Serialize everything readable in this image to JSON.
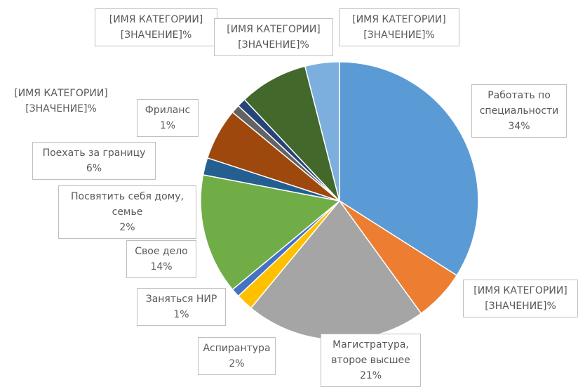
{
  "chart_data": {
    "type": "pie",
    "categories": [
      "Работать по специальности",
      "[ИМЯ КАТЕГОРИИ]",
      "Магистратура, второе высшее",
      "Аспирантура",
      "Заняться НИР",
      "Свое дело",
      "Посвятить себя дому, семье",
      "Поехать за границу",
      "Фриланс",
      "[ИМЯ КАТЕГОРИИ]",
      "[ИМЯ КАТЕГОРИИ]",
      "[ИМЯ КАТЕГОРИИ]",
      "[ИМЯ КАТЕГОРИИ]"
    ],
    "values": [
      34,
      6,
      21,
      2,
      1,
      14,
      2,
      6,
      1,
      0,
      1,
      8,
      4
    ],
    "value_labels": [
      "34%",
      "[ЗНАЧЕНИЕ]%",
      "21%",
      "2%",
      "1%",
      "14%",
      "2%",
      "6%",
      "1%",
      "[ЗНАЧЕНИЕ]%",
      "[ЗНАЧЕНИЕ]%",
      "[ЗНАЧЕНИЕ]%",
      "[ЗНАЧЕНИЕ]%"
    ],
    "colors": [
      "#5b9bd5",
      "#ed7d31",
      "#a5a5a5",
      "#ffc000",
      "#4472c4",
      "#70ad47",
      "#255e91",
      "#9e480e",
      "#636363",
      "#997300",
      "#264478",
      "#43682b",
      "#7cafdd"
    ]
  }
}
